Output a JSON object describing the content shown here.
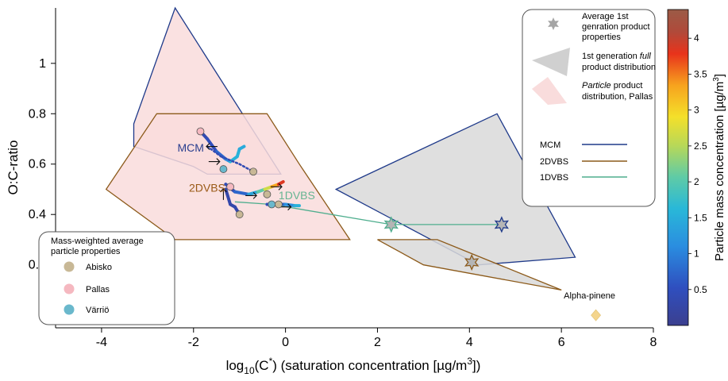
{
  "chart_data": {
    "type": "scatter",
    "xlabel": "log10(C*) (saturation concentration [µg/m3])",
    "ylabel": "O:C-ratio",
    "xlim": [
      -5,
      8
    ],
    "ylim": [
      -0.05,
      1.22
    ],
    "xticks": [
      "-4",
      "-2",
      "0",
      "2",
      "4",
      "6",
      "8"
    ],
    "yticks": [
      "0",
      "0.2",
      "0.4",
      "0.6",
      "0.8",
      "1"
    ],
    "colorbar": {
      "label": "Particle mass concentration [µg/m3]",
      "range": [
        0,
        4.4
      ],
      "ticks": [
        "0.5",
        "1",
        "1.5",
        "2",
        "2.5",
        "3",
        "3.5",
        "4"
      ]
    },
    "regions": [
      {
        "name": "Particle product distribution, Pallas (MCM)",
        "fill": "#f9dcdc",
        "edge": "#1f3a8a",
        "points": [
          [
            -3.3,
            0.67
          ],
          [
            -3.3,
            0.76
          ],
          [
            -2.4,
            1.22
          ],
          [
            -0.1,
            0.56
          ],
          [
            -1.7,
            0.56
          ],
          [
            -2.0,
            0.59
          ]
        ]
      },
      {
        "name": "Particle product distribution, Pallas (2DVBS)",
        "fill": "#f9dcdc",
        "edge": "#8c5a1a",
        "points": [
          [
            -3.9,
            0.5
          ],
          [
            -2.8,
            0.8
          ],
          [
            -0.4,
            0.8
          ],
          [
            0.3,
            0.6
          ],
          [
            1.4,
            0.3
          ],
          [
            -2.4,
            0.3
          ]
        ]
      },
      {
        "name": "1st generation full product distribution (MCM)",
        "fill": "#d9d9d9",
        "edge": "#1f3a8a",
        "points": [
          [
            1.1,
            0.5
          ],
          [
            4.6,
            0.8
          ],
          [
            6.3,
            0.23
          ],
          [
            4.2,
            0.2
          ]
        ]
      },
      {
        "name": "1st generation full product distribution (2DVBS)",
        "fill": "#d9d9d9",
        "edge": "#8c5a1a",
        "points": [
          [
            2.0,
            0.3
          ],
          [
            3.3,
            0.3
          ],
          [
            6.0,
            0.1
          ],
          [
            3.0,
            0.2
          ]
        ]
      }
    ],
    "lines": [
      {
        "name": "1DVBS",
        "color": "#4fae8e",
        "points": [
          [
            -1.1,
            0.45
          ],
          [
            -0.3,
            0.44
          ],
          [
            2.3,
            0.36
          ],
          [
            4.7,
            0.36
          ]
        ]
      }
    ],
    "trajectories": [
      {
        "model": "MCM",
        "points": [
          {
            "x": -1.85,
            "y": 0.73,
            "c": 0.3
          },
          {
            "x": -1.7,
            "y": 0.7,
            "c": 0.4
          },
          {
            "x": -1.5,
            "y": 0.65,
            "c": 0.6
          },
          {
            "x": -1.3,
            "y": 0.62,
            "c": 0.9
          },
          {
            "x": -1.2,
            "y": 0.61,
            "c": 1.3
          },
          {
            "x": -1.05,
            "y": 0.63,
            "c": 1.8
          },
          {
            "x": -1.0,
            "y": 0.66,
            "c": 1.3
          },
          {
            "x": -0.9,
            "y": 0.67,
            "c": 1.6
          }
        ]
      },
      {
        "model": "MCM-dotted",
        "points": [
          {
            "x": -1.7,
            "y": 0.67,
            "c": 0.4
          },
          {
            "x": -1.4,
            "y": 0.63,
            "c": 0.4
          },
          {
            "x": -1.0,
            "y": 0.6,
            "c": 0.4
          },
          {
            "x": -0.7,
            "y": 0.57,
            "c": 0.4
          }
        ]
      },
      {
        "model": "2DVBS",
        "points": [
          {
            "x": -1.3,
            "y": 0.52,
            "c": 0.3
          },
          {
            "x": -1.1,
            "y": 0.49,
            "c": 0.5
          },
          {
            "x": -0.8,
            "y": 0.48,
            "c": 1.0
          },
          {
            "x": -0.6,
            "y": 0.49,
            "c": 1.8
          },
          {
            "x": -0.45,
            "y": 0.5,
            "c": 2.3
          },
          {
            "x": -0.3,
            "y": 0.51,
            "c": 3.0
          },
          {
            "x": -0.15,
            "y": 0.52,
            "c": 3.6
          },
          {
            "x": -0.05,
            "y": 0.53,
            "c": 4.2
          }
        ]
      },
      {
        "model": "2DVBS-tail",
        "points": [
          {
            "x": -1.3,
            "y": 0.5,
            "c": 0.3
          },
          {
            "x": -1.2,
            "y": 0.44,
            "c": 0.3
          },
          {
            "x": -1.1,
            "y": 0.43,
            "c": 0.3
          },
          {
            "x": -1.0,
            "y": 0.4,
            "c": 0.3
          }
        ]
      },
      {
        "model": "1DVBS",
        "points": [
          {
            "x": -0.4,
            "y": 0.44,
            "c": 0.4
          },
          {
            "x": -0.2,
            "y": 0.44,
            "c": 0.6
          },
          {
            "x": 0.0,
            "y": 0.44,
            "c": 0.9
          },
          {
            "x": 0.2,
            "y": 0.435,
            "c": 1.4
          },
          {
            "x": 0.3,
            "y": 0.435,
            "c": 1.7
          }
        ]
      }
    ],
    "avg_1st_gen_stars": [
      {
        "model": "MCM",
        "x": 4.7,
        "y": 0.36,
        "edge": "#1f3a8a"
      },
      {
        "model": "2DVBS",
        "x": 4.05,
        "y": 0.21,
        "edge": "#8c5a1a"
      },
      {
        "model": "1DVBS",
        "x": 2.3,
        "y": 0.36,
        "edge": "#4fae8e"
      }
    ],
    "mass_weighted_markers": [
      {
        "station": "Abisko",
        "model": "MCM",
        "x": -0.7,
        "y": 0.57
      },
      {
        "station": "Vӓrriö",
        "model": "MCM",
        "x": -1.35,
        "y": 0.58
      },
      {
        "station": "Pallas",
        "model": "MCM",
        "x": -1.85,
        "y": 0.73
      },
      {
        "station": "Abisko",
        "model": "2DVBS",
        "x": -0.4,
        "y": 0.48
      },
      {
        "station": "Pallas",
        "model": "2DVBS",
        "x": -1.2,
        "y": 0.51
      },
      {
        "station": "Abisko",
        "model": "2DVBS",
        "x": -1.0,
        "y": 0.4
      },
      {
        "station": "Abisko",
        "model": "1DVBS",
        "x": -0.15,
        "y": 0.44
      },
      {
        "station": "Vӓrriö",
        "model": "1DVBS",
        "x": -0.3,
        "y": 0.44
      }
    ],
    "alpha_pinene": {
      "label": "Alpha-pinene",
      "x": 6.75,
      "y": 0.0
    },
    "region_labels": [
      {
        "text": "MCM",
        "x": -2.35,
        "y": 0.65,
        "color": "#2b3f8f"
      },
      {
        "text": "2DVBS",
        "x": -2.1,
        "y": 0.49,
        "color": "#9a5a17"
      },
      {
        "text": "1DVBS",
        "x": -0.15,
        "y": 0.46,
        "color": "#66b592"
      }
    ],
    "legend_top": {
      "items": [
        {
          "kind": "star",
          "label_lines": [
            "Average 1st",
            "genration product",
            "properties"
          ]
        },
        {
          "kind": "gray-shape",
          "label_lines": [
            "1st generation full",
            "product distribution"
          ]
        },
        {
          "kind": "pink-shape",
          "label_lines": [
            "Particle product",
            "distribution, Pallas"
          ]
        },
        {
          "kind": "line",
          "label": "MCM",
          "color": "#1f3a8a"
        },
        {
          "kind": "line",
          "label": "2DVBS",
          "color": "#8c5a1a"
        },
        {
          "kind": "line",
          "label": "1DVBS",
          "color": "#4fae8e"
        }
      ]
    },
    "legend_bottom": {
      "title_lines": [
        "Mass-weighted average",
        "particle properties"
      ],
      "items": [
        {
          "label": "Abisko",
          "color": "#c8b896"
        },
        {
          "label": "Pallas",
          "color": "#f5b8c0"
        },
        {
          "label": "Vӓrriö",
          "color": "#6ab8cc"
        }
      ]
    },
    "colors": {
      "pink_fill": "#f9dcdc",
      "gray_fill": "#d9d9d9",
      "mcm": "#1f3a8a",
      "dvbs2": "#8c5a1a",
      "dvbs1": "#4fae8e",
      "alpha_pinene": "#f4d58d"
    }
  }
}
